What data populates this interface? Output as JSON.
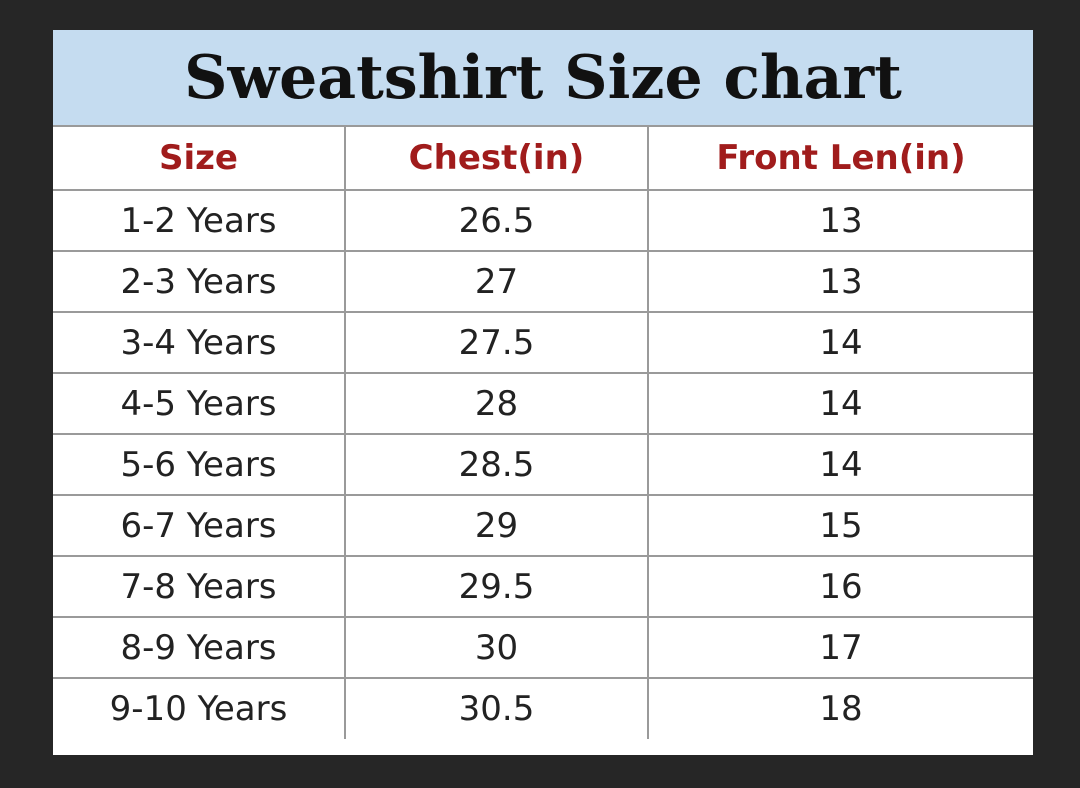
{
  "header": {
    "title": "Sweatshirt Size chart"
  },
  "table": {
    "columns": [
      "Size",
      "Chest(in)",
      "Front Len(in)"
    ],
    "rows": [
      [
        "1-2 Years",
        26.5,
        13
      ],
      [
        "2-3 Years",
        27,
        13
      ],
      [
        "3-4 Years",
        27.5,
        14
      ],
      [
        "4-5 Years",
        28,
        14
      ],
      [
        "5-6 Years",
        28.5,
        14
      ],
      [
        "6-7 Years",
        29,
        15
      ],
      [
        "7-8 Years",
        29.5,
        16
      ],
      [
        "8-9 Years",
        30,
        17
      ],
      [
        "9-10 Years",
        30.5,
        18
      ]
    ]
  }
}
